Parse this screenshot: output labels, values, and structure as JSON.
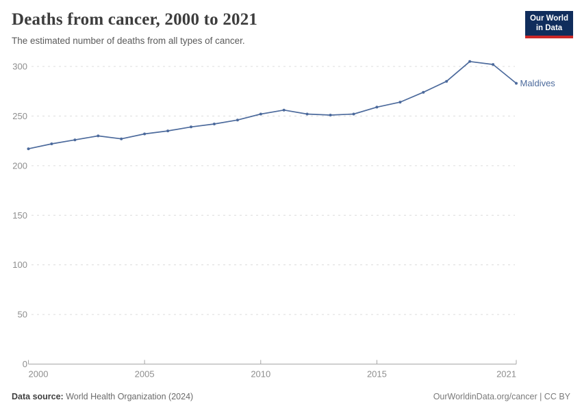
{
  "header": {
    "title": "Deaths from cancer, 2000 to 2021",
    "subtitle": "The estimated number of deaths from all types of cancer."
  },
  "logo": {
    "line1": "Our World",
    "line2": "in Data"
  },
  "chart_data": {
    "type": "line",
    "title": "Deaths from cancer, 2000 to 2021",
    "subtitle": "The estimated number of deaths from all types of cancer.",
    "series": [
      {
        "name": "Maldives",
        "x": [
          2000,
          2001,
          2002,
          2003,
          2004,
          2005,
          2006,
          2007,
          2008,
          2009,
          2010,
          2011,
          2012,
          2013,
          2014,
          2015,
          2016,
          2017,
          2018,
          2019,
          2020,
          2021
        ],
        "values": [
          217,
          222,
          226,
          230,
          227,
          232,
          235,
          239,
          242,
          246,
          252,
          256,
          252,
          251,
          252,
          259,
          264,
          274,
          285,
          305,
          302,
          283
        ],
        "color": "#4C6A9C"
      }
    ],
    "xlabel": "",
    "ylabel": "",
    "xlim": [
      2000,
      2021
    ],
    "ylim": [
      0,
      300
    ],
    "yticks": [
      0,
      50,
      100,
      150,
      200,
      250,
      300
    ],
    "xticks": [
      2000,
      2005,
      2010,
      2015,
      2021
    ],
    "grid": true,
    "legend_position": "end-of-line-label"
  },
  "footer": {
    "source_label": "Data source:",
    "source_value": "World Health Organization (2024)",
    "credit": "OurWorldinData.org/cancer | CC BY"
  },
  "colors": {
    "line": "#4C6A9C",
    "gridline": "#dcdcdc",
    "axis_line": "#a5a5a5",
    "tick_label": "#8e8e8e",
    "logo_bg": "#102D5C",
    "logo_stripe": "#CB2727"
  }
}
